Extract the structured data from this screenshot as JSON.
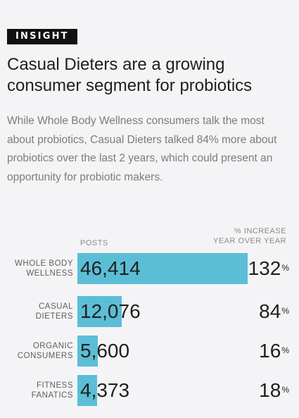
{
  "tag": "INSIGHT",
  "headline": "Casual Dieters are a growing consumer segment for probiotics",
  "body": "While Whole Body Wellness consumers talk the most about probiotics, Casual Dieters talked 84% more about probiotics over the last 2 years, which could present an opportunity for probiotic makers.",
  "columns": {
    "posts": "POSTS",
    "increase_line1": "% INCREASE",
    "increase_line2": "YEAR OVER YEAR"
  },
  "chart_data": {
    "type": "bar",
    "orientation": "horizontal",
    "categories": [
      "WHOLE BODY WELLNESS",
      "CASUAL DIETERS",
      "ORGANIC CONSUMERS",
      "FITNESS FANATICS"
    ],
    "category_lines": [
      [
        "WHOLE BODY",
        "WELLNESS"
      ],
      [
        "CASUAL",
        "DIETERS"
      ],
      [
        "ORGANIC",
        "CONSUMERS"
      ],
      [
        "FITNESS",
        "FANATICS"
      ]
    ],
    "series": [
      {
        "name": "POSTS",
        "values": [
          46414,
          12076,
          5600,
          4373
        ],
        "labels": [
          "46,414",
          "12,076",
          "5,600",
          "4,373"
        ]
      },
      {
        "name": "% INCREASE YEAR OVER YEAR",
        "values": [
          132,
          84,
          16,
          18
        ],
        "labels": [
          "132",
          "84",
          "16",
          "18"
        ],
        "unit": "%"
      }
    ],
    "bar_color": "#5bbed6"
  }
}
